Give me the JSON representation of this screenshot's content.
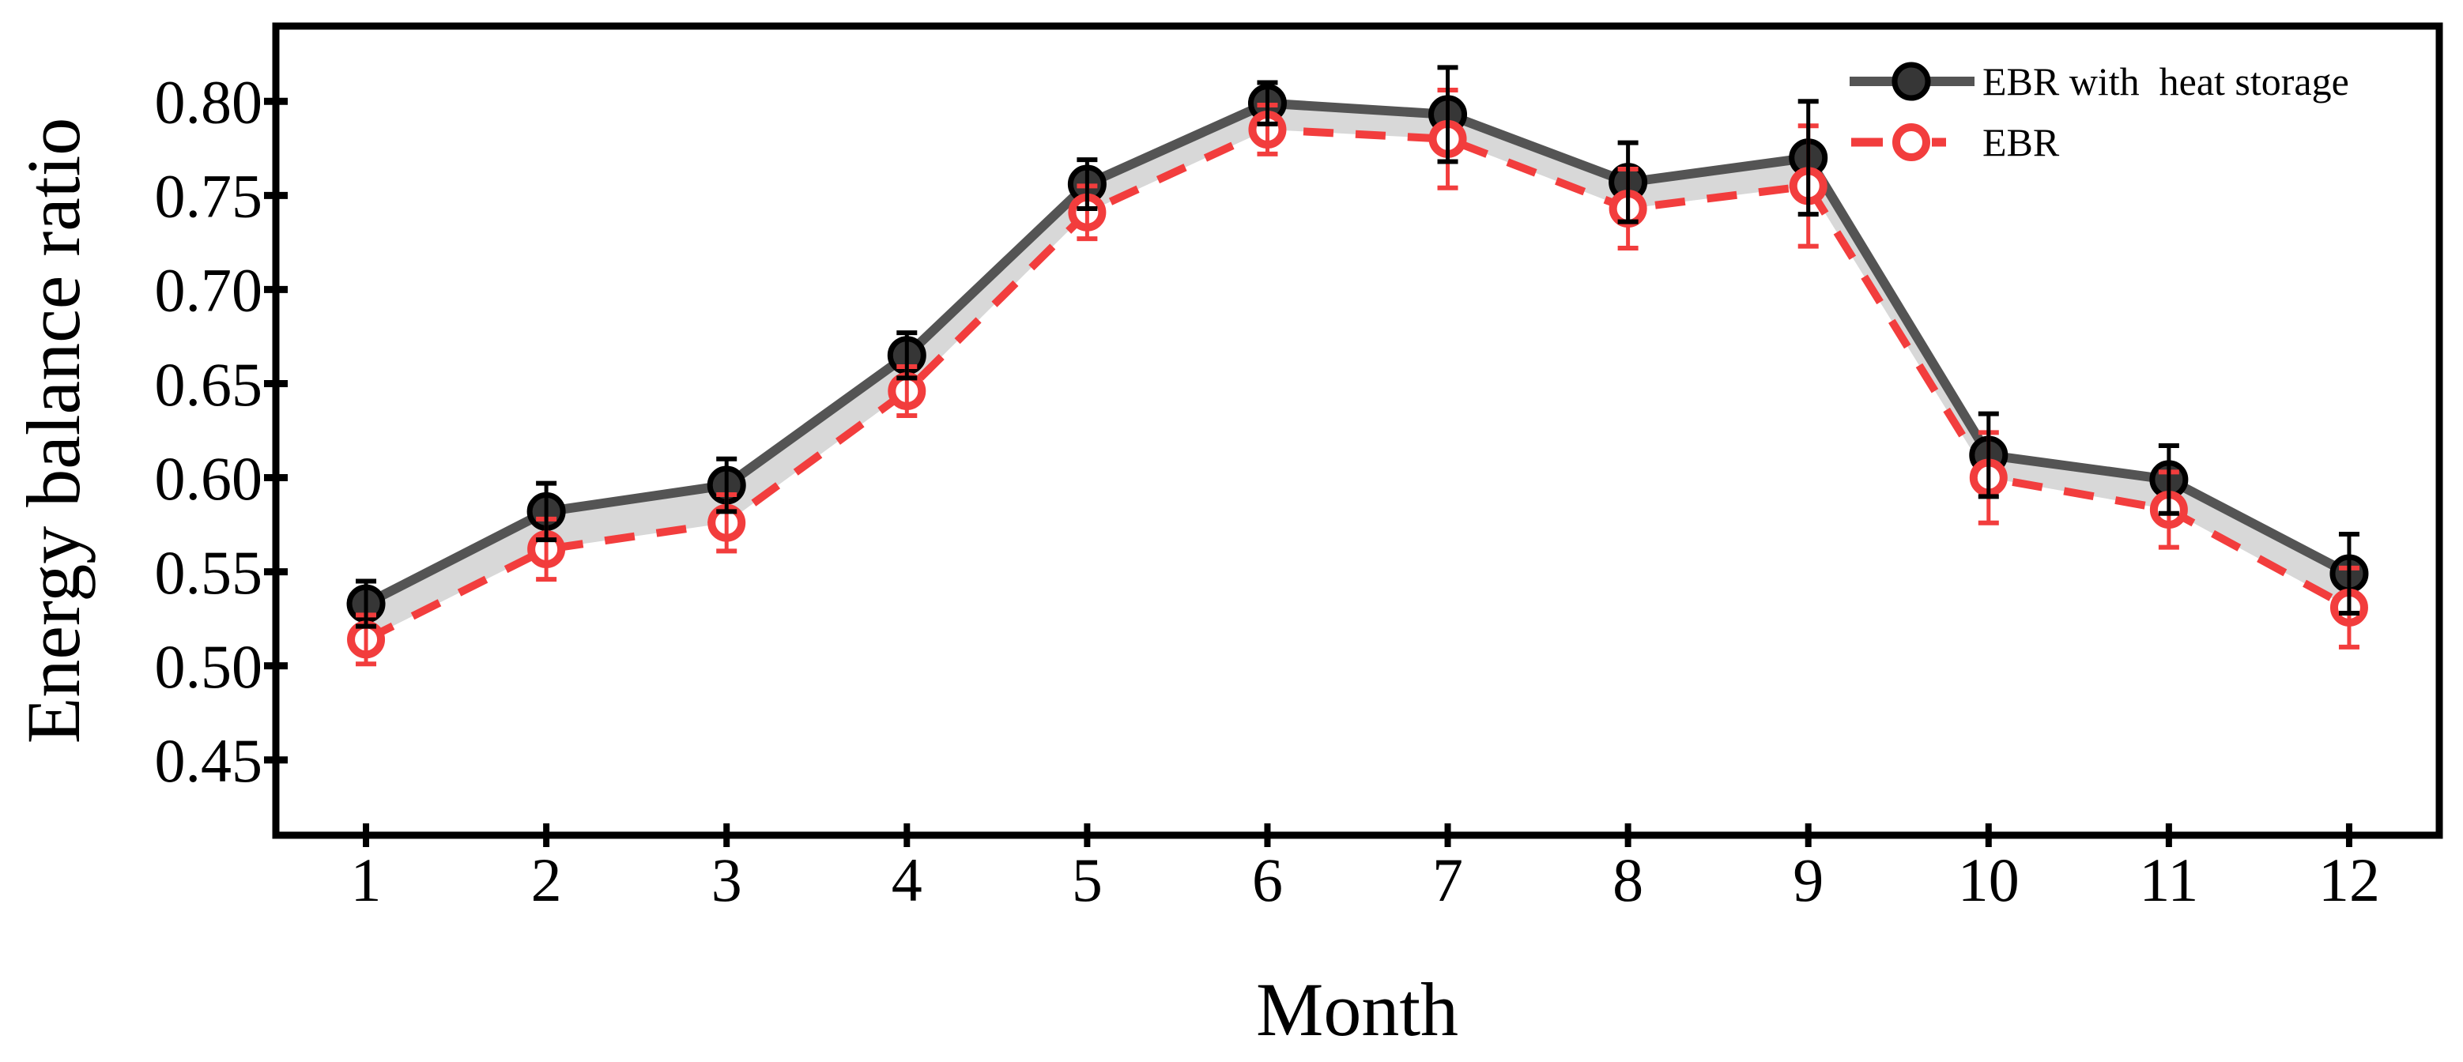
{
  "chart_data": {
    "type": "line",
    "title": "",
    "xlabel": "Month",
    "ylabel": "Energy balance ratio",
    "x": [
      1,
      2,
      3,
      4,
      5,
      6,
      7,
      8,
      9,
      10,
      11,
      12
    ],
    "xtick_labels": [
      "1",
      "2",
      "3",
      "4",
      "5",
      "6",
      "7",
      "8",
      "9",
      "10",
      "11",
      "12"
    ],
    "yticks": [
      0.45,
      0.5,
      0.55,
      0.6,
      0.65,
      0.7,
      0.75,
      0.8
    ],
    "ytick_labels": [
      "0.45",
      "0.50",
      "0.55",
      "0.60",
      "0.65",
      "0.70",
      "0.75",
      "0.80"
    ],
    "xlim": [
      0.5,
      12.5
    ],
    "ylim": [
      0.41,
      0.84
    ],
    "grid": false,
    "legend_position": "top-right-inside",
    "band_between_series": true,
    "band_color": "#d8d8d8",
    "frame_color": "#000000",
    "series": [
      {
        "name": "EBR with  heat storage",
        "marker": "filled-circle",
        "line_style": "solid",
        "line_color": "#545454",
        "marker_fill": "#363636",
        "marker_edge": "#000000",
        "error_color": "#000000",
        "values": [
          0.533,
          0.582,
          0.596,
          0.665,
          0.756,
          0.799,
          0.793,
          0.757,
          0.77,
          0.612,
          0.599,
          0.549
        ],
        "errors": [
          0.012,
          0.015,
          0.014,
          0.012,
          0.013,
          0.011,
          0.025,
          0.021,
          0.03,
          0.022,
          0.018,
          0.021
        ]
      },
      {
        "name": "EBR",
        "marker": "open-circle",
        "line_style": "dashed",
        "line_color": "#f23d3d",
        "marker_fill": "#ffffff",
        "marker_edge": "#f23d3d",
        "error_color": "#f23d3d",
        "values": [
          0.514,
          0.562,
          0.576,
          0.646,
          0.741,
          0.785,
          0.78,
          0.743,
          0.755,
          0.6,
          0.583,
          0.531
        ],
        "errors": [
          0.013,
          0.016,
          0.015,
          0.013,
          0.014,
          0.013,
          0.026,
          0.021,
          0.032,
          0.024,
          0.02,
          0.021
        ]
      }
    ]
  }
}
